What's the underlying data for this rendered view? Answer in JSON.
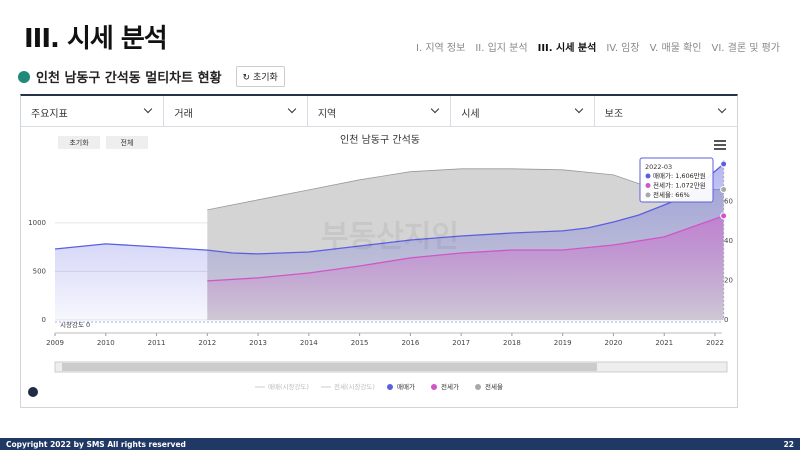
{
  "header": {
    "title": "III. 시세 분석",
    "nav": [
      "I. 지역 정보",
      "II. 입지 분석",
      "III. 시세 분석",
      "IV. 임장",
      "V. 매물 확인",
      "VI. 결론 및 평가"
    ],
    "subtitle": "인천 남동구 간석동 멀티차트 현황",
    "reset": "초기화"
  },
  "dropdowns": [
    "주요지표",
    "거래",
    "지역",
    "시세",
    "보조"
  ],
  "chart_data": {
    "type": "line",
    "title": "인천 남동구 간석동",
    "buttons": [
      "초기화",
      "전체"
    ],
    "watermark": "부동산지인",
    "baseline_label": "시장강도 0",
    "xlim": [
      2009,
      2022
    ],
    "xticks": [
      2009,
      2010,
      2011,
      2012,
      2013,
      2014,
      2015,
      2016,
      2017,
      2018,
      2019,
      2020,
      2021,
      2022
    ],
    "ylim": [
      0,
      1750
    ],
    "yticks": [
      0,
      500,
      1000
    ],
    "y2lim": [
      0,
      86
    ],
    "y2ticks": [
      0,
      20,
      40,
      60
    ],
    "grid": true,
    "series": [
      {
        "name": "전세율",
        "color": "#a9a9a9",
        "axis": "y2",
        "x": [
          2012,
          2013,
          2014,
          2015,
          2016,
          2017,
          2018,
          2019,
          2020,
          2020.5,
          2021,
          2022.17
        ],
        "values": [
          55.7,
          60.8,
          65.8,
          70.9,
          75,
          76.5,
          76.5,
          76,
          73.4,
          69,
          66,
          66
        ]
      },
      {
        "name": "매매가",
        "color": "#5b5fe0",
        "x": [
          2009,
          2010,
          2011,
          2012,
          2012.5,
          2013,
          2014,
          2015,
          2016,
          2017,
          2018,
          2019,
          2019.5,
          2020,
          2020.5,
          2021,
          2021.5,
          2021.8,
          2022.17
        ],
        "values": [
          731,
          783,
          752,
          720,
          690,
          680,
          700,
          762,
          824,
          865,
          896,
          917,
          948,
          1009,
          1081,
          1184,
          1290,
          1442,
          1606
        ]
      },
      {
        "name": "전세가",
        "color": "#d056c8",
        "x": [
          2012,
          2013,
          2014,
          2015,
          2016,
          2017,
          2018,
          2019,
          2020,
          2021,
          2021.5,
          2022.17
        ],
        "values": [
          402,
          433,
          484,
          556,
          639,
          690,
          721,
          721,
          772,
          855,
          948,
          1072
        ]
      }
    ],
    "inactive_legend": [
      "매매(시장강도)",
      "전세(시장강도)"
    ],
    "tooltip": {
      "date": "2022-03",
      "items": [
        "매매가: 1,606만원",
        "전세가: 1,072만원",
        "전세율: 66%"
      ]
    }
  },
  "footer": {
    "copyright": "Copyright 2022 by SMS All rights reserved",
    "page": "22"
  }
}
